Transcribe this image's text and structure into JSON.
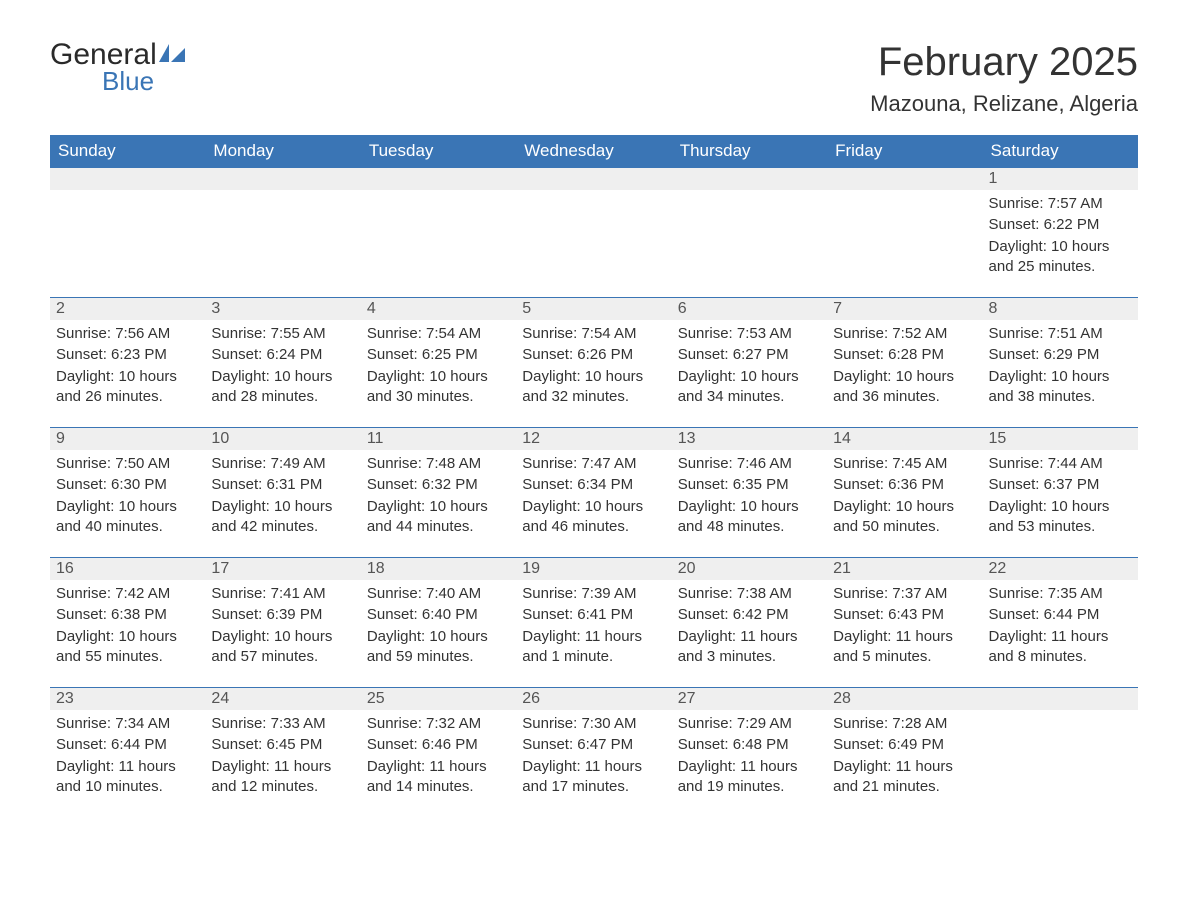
{
  "logo": {
    "text1": "General",
    "text2": "Blue"
  },
  "title": "February 2025",
  "location": "Mazouna, Relizane, Algeria",
  "colors": {
    "header_bg": "#3a75b5",
    "header_text": "#ffffff",
    "daynum_bg": "#efefef",
    "border": "#3a75b5",
    "text": "#333333",
    "background": "#ffffff"
  },
  "weekdays": [
    "Sunday",
    "Monday",
    "Tuesday",
    "Wednesday",
    "Thursday",
    "Friday",
    "Saturday"
  ],
  "weeks": [
    [
      null,
      null,
      null,
      null,
      null,
      null,
      {
        "n": "1",
        "sunrise": "Sunrise: 7:57 AM",
        "sunset": "Sunset: 6:22 PM",
        "daylight": "Daylight: 10 hours and 25 minutes."
      }
    ],
    [
      {
        "n": "2",
        "sunrise": "Sunrise: 7:56 AM",
        "sunset": "Sunset: 6:23 PM",
        "daylight": "Daylight: 10 hours and 26 minutes."
      },
      {
        "n": "3",
        "sunrise": "Sunrise: 7:55 AM",
        "sunset": "Sunset: 6:24 PM",
        "daylight": "Daylight: 10 hours and 28 minutes."
      },
      {
        "n": "4",
        "sunrise": "Sunrise: 7:54 AM",
        "sunset": "Sunset: 6:25 PM",
        "daylight": "Daylight: 10 hours and 30 minutes."
      },
      {
        "n": "5",
        "sunrise": "Sunrise: 7:54 AM",
        "sunset": "Sunset: 6:26 PM",
        "daylight": "Daylight: 10 hours and 32 minutes."
      },
      {
        "n": "6",
        "sunrise": "Sunrise: 7:53 AM",
        "sunset": "Sunset: 6:27 PM",
        "daylight": "Daylight: 10 hours and 34 minutes."
      },
      {
        "n": "7",
        "sunrise": "Sunrise: 7:52 AM",
        "sunset": "Sunset: 6:28 PM",
        "daylight": "Daylight: 10 hours and 36 minutes."
      },
      {
        "n": "8",
        "sunrise": "Sunrise: 7:51 AM",
        "sunset": "Sunset: 6:29 PM",
        "daylight": "Daylight: 10 hours and 38 minutes."
      }
    ],
    [
      {
        "n": "9",
        "sunrise": "Sunrise: 7:50 AM",
        "sunset": "Sunset: 6:30 PM",
        "daylight": "Daylight: 10 hours and 40 minutes."
      },
      {
        "n": "10",
        "sunrise": "Sunrise: 7:49 AM",
        "sunset": "Sunset: 6:31 PM",
        "daylight": "Daylight: 10 hours and 42 minutes."
      },
      {
        "n": "11",
        "sunrise": "Sunrise: 7:48 AM",
        "sunset": "Sunset: 6:32 PM",
        "daylight": "Daylight: 10 hours and 44 minutes."
      },
      {
        "n": "12",
        "sunrise": "Sunrise: 7:47 AM",
        "sunset": "Sunset: 6:34 PM",
        "daylight": "Daylight: 10 hours and 46 minutes."
      },
      {
        "n": "13",
        "sunrise": "Sunrise: 7:46 AM",
        "sunset": "Sunset: 6:35 PM",
        "daylight": "Daylight: 10 hours and 48 minutes."
      },
      {
        "n": "14",
        "sunrise": "Sunrise: 7:45 AM",
        "sunset": "Sunset: 6:36 PM",
        "daylight": "Daylight: 10 hours and 50 minutes."
      },
      {
        "n": "15",
        "sunrise": "Sunrise: 7:44 AM",
        "sunset": "Sunset: 6:37 PM",
        "daylight": "Daylight: 10 hours and 53 minutes."
      }
    ],
    [
      {
        "n": "16",
        "sunrise": "Sunrise: 7:42 AM",
        "sunset": "Sunset: 6:38 PM",
        "daylight": "Daylight: 10 hours and 55 minutes."
      },
      {
        "n": "17",
        "sunrise": "Sunrise: 7:41 AM",
        "sunset": "Sunset: 6:39 PM",
        "daylight": "Daylight: 10 hours and 57 minutes."
      },
      {
        "n": "18",
        "sunrise": "Sunrise: 7:40 AM",
        "sunset": "Sunset: 6:40 PM",
        "daylight": "Daylight: 10 hours and 59 minutes."
      },
      {
        "n": "19",
        "sunrise": "Sunrise: 7:39 AM",
        "sunset": "Sunset: 6:41 PM",
        "daylight": "Daylight: 11 hours and 1 minute."
      },
      {
        "n": "20",
        "sunrise": "Sunrise: 7:38 AM",
        "sunset": "Sunset: 6:42 PM",
        "daylight": "Daylight: 11 hours and 3 minutes."
      },
      {
        "n": "21",
        "sunrise": "Sunrise: 7:37 AM",
        "sunset": "Sunset: 6:43 PM",
        "daylight": "Daylight: 11 hours and 5 minutes."
      },
      {
        "n": "22",
        "sunrise": "Sunrise: 7:35 AM",
        "sunset": "Sunset: 6:44 PM",
        "daylight": "Daylight: 11 hours and 8 minutes."
      }
    ],
    [
      {
        "n": "23",
        "sunrise": "Sunrise: 7:34 AM",
        "sunset": "Sunset: 6:44 PM",
        "daylight": "Daylight: 11 hours and 10 minutes."
      },
      {
        "n": "24",
        "sunrise": "Sunrise: 7:33 AM",
        "sunset": "Sunset: 6:45 PM",
        "daylight": "Daylight: 11 hours and 12 minutes."
      },
      {
        "n": "25",
        "sunrise": "Sunrise: 7:32 AM",
        "sunset": "Sunset: 6:46 PM",
        "daylight": "Daylight: 11 hours and 14 minutes."
      },
      {
        "n": "26",
        "sunrise": "Sunrise: 7:30 AM",
        "sunset": "Sunset: 6:47 PM",
        "daylight": "Daylight: 11 hours and 17 minutes."
      },
      {
        "n": "27",
        "sunrise": "Sunrise: 7:29 AM",
        "sunset": "Sunset: 6:48 PM",
        "daylight": "Daylight: 11 hours and 19 minutes."
      },
      {
        "n": "28",
        "sunrise": "Sunrise: 7:28 AM",
        "sunset": "Sunset: 6:49 PM",
        "daylight": "Daylight: 11 hours and 21 minutes."
      },
      null
    ]
  ]
}
